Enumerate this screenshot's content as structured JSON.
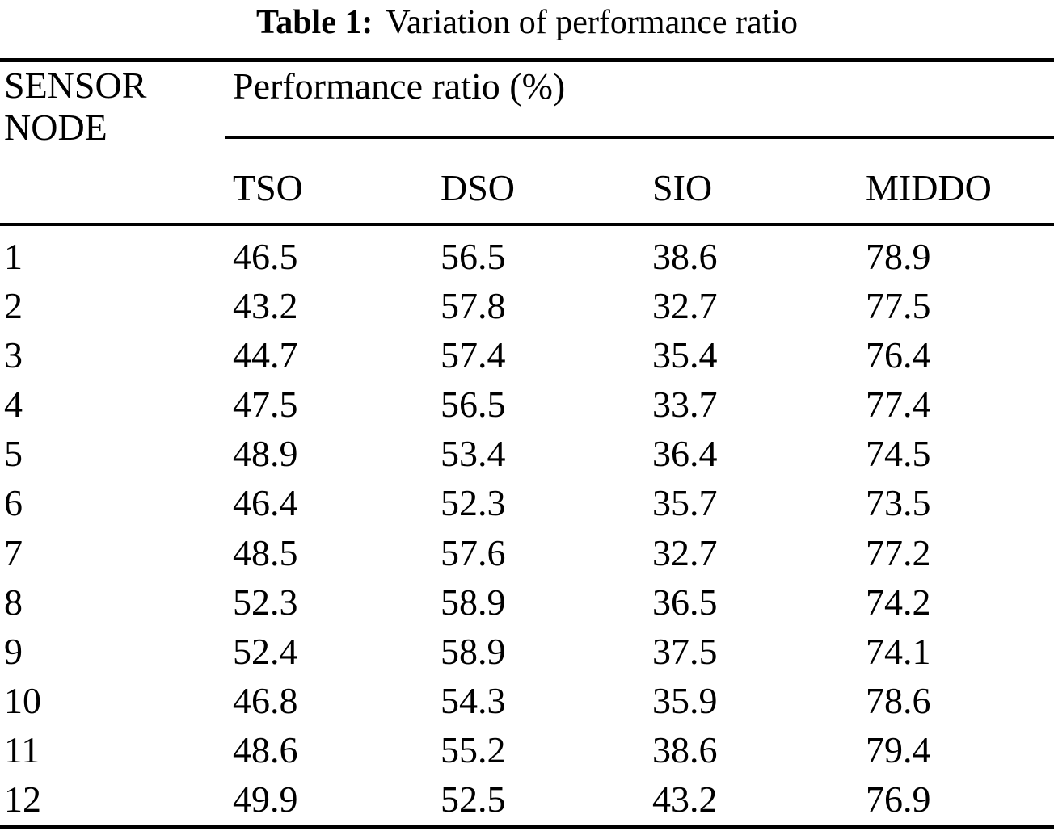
{
  "page": {
    "background_color": "#ffffff",
    "text_color": "#000000"
  },
  "caption": {
    "label": "Table 1:",
    "text": "Variation of performance ratio"
  },
  "table": {
    "stub_header": {
      "line1": "SENSOR",
      "line2": "NODE"
    },
    "group_header": "Performance ratio (%)",
    "columns": [
      "TSO",
      "DSO",
      "SIO",
      "MIDDO"
    ],
    "rows": [
      {
        "node": "1",
        "values": [
          "46.5",
          "56.5",
          "38.6",
          "78.9"
        ]
      },
      {
        "node": "2",
        "values": [
          "43.2",
          "57.8",
          "32.7",
          "77.5"
        ]
      },
      {
        "node": "3",
        "values": [
          "44.7",
          "57.4",
          "35.4",
          "76.4"
        ]
      },
      {
        "node": "4",
        "values": [
          "47.5",
          "56.5",
          "33.7",
          "77.4"
        ]
      },
      {
        "node": "5",
        "values": [
          "48.9",
          "53.4",
          "36.4",
          "74.5"
        ]
      },
      {
        "node": "6",
        "values": [
          "46.4",
          "52.3",
          "35.7",
          "73.5"
        ]
      },
      {
        "node": "7",
        "values": [
          "48.5",
          "57.6",
          "32.7",
          "77.2"
        ]
      },
      {
        "node": "8",
        "values": [
          "52.3",
          "58.9",
          "36.5",
          "74.2"
        ]
      },
      {
        "node": "9",
        "values": [
          "52.4",
          "58.9",
          "37.5",
          "74.1"
        ]
      },
      {
        "node": "10",
        "values": [
          "46.8",
          "54.3",
          "35.9",
          "78.6"
        ]
      },
      {
        "node": "11",
        "values": [
          "48.6",
          "55.2",
          "38.6",
          "79.4"
        ]
      },
      {
        "node": "12",
        "values": [
          "49.9",
          "52.5",
          "43.2",
          "76.9"
        ]
      }
    ]
  },
  "chart_data": {
    "type": "table",
    "title": "Table 1: Variation of performance ratio",
    "categories": [
      1,
      2,
      3,
      4,
      5,
      6,
      7,
      8,
      9,
      10,
      11,
      12
    ],
    "xlabel": "SENSOR NODE",
    "ylabel": "Performance ratio (%)",
    "series": [
      {
        "name": "TSO",
        "values": [
          46.5,
          43.2,
          44.7,
          47.5,
          48.9,
          46.4,
          48.5,
          52.3,
          52.4,
          46.8,
          48.6,
          49.9
        ]
      },
      {
        "name": "DSO",
        "values": [
          56.5,
          57.8,
          57.4,
          56.5,
          53.4,
          52.3,
          57.6,
          58.9,
          58.9,
          54.3,
          55.2,
          52.5
        ]
      },
      {
        "name": "SIO",
        "values": [
          38.6,
          32.7,
          35.4,
          33.7,
          36.4,
          35.7,
          32.7,
          36.5,
          37.5,
          35.9,
          38.6,
          43.2
        ]
      },
      {
        "name": "MIDDO",
        "values": [
          78.9,
          77.5,
          76.4,
          77.4,
          74.5,
          73.5,
          77.2,
          74.2,
          74.1,
          78.6,
          79.4,
          76.9
        ]
      }
    ]
  }
}
